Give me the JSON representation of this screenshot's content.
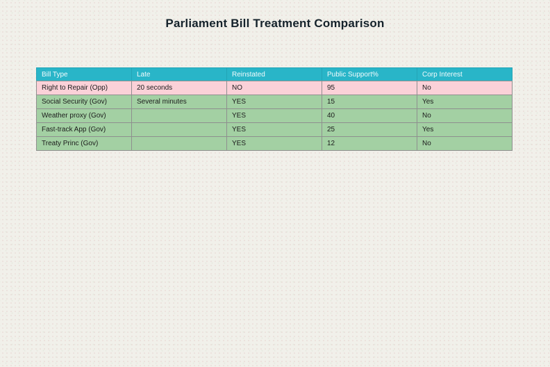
{
  "page": {
    "title": "Parliament Bill Treatment Comparison"
  },
  "colors": {
    "background": "#f1f0ea",
    "title_text": "#15222b",
    "header_bg": "#29b5c8",
    "header_text": "#f2fbfd",
    "pink_row": "#fbd1d8",
    "green_row": "#a3d0a3",
    "cell_text": "#1c1c1c",
    "border": "#8f8f8f"
  },
  "chart_data": {
    "type": "table",
    "title": "Parliament Bill Treatment Comparison",
    "columns": [
      "Bill Type",
      "Late",
      "Reinstated",
      "Public Support%",
      "Corp Interest"
    ],
    "rows": [
      {
        "highlight": "pink",
        "cells": [
          "Right to Repair (Opp)",
          "20 seconds",
          "NO",
          "95",
          "No"
        ]
      },
      {
        "highlight": "green",
        "cells": [
          "Social Security (Gov)",
          "Several minutes",
          "YES",
          "15",
          "Yes"
        ]
      },
      {
        "highlight": "green",
        "cells": [
          "Weather proxy (Gov)",
          "",
          "YES",
          "40",
          "No"
        ]
      },
      {
        "highlight": "green",
        "cells": [
          "Fast-track App (Gov)",
          "",
          "YES",
          "25",
          "Yes"
        ]
      },
      {
        "highlight": "green",
        "cells": [
          "Treaty Princ (Gov)",
          "",
          "YES",
          "12",
          "No"
        ]
      }
    ],
    "layout": {
      "legend": "none",
      "grid": "cell-borders",
      "header_position": "top"
    }
  }
}
